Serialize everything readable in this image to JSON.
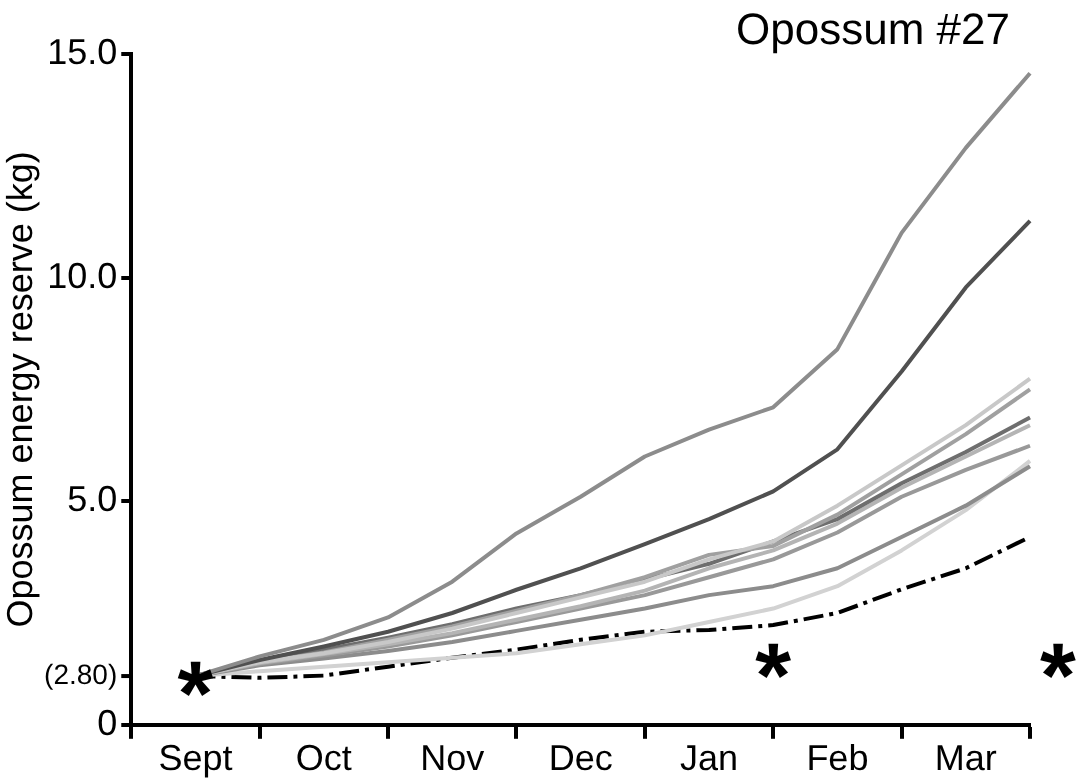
{
  "chart_data": {
    "type": "line",
    "ylabel": "Opossum energy reserve (kg)",
    "title": "Opossum #27",
    "categories": [
      null,
      "Sept",
      null,
      "Oct",
      null,
      "Nov",
      null,
      "Dec",
      null,
      "Jan",
      null,
      "Feb",
      null,
      "Mar",
      null
    ],
    "ylim": [
      0,
      15
    ],
    "yticks": [
      0,
      {
        "value": 5,
        "label": "5.0"
      },
      {
        "value": 10,
        "label": "10.0"
      },
      {
        "value": 15,
        "label": "15.0"
      }
    ],
    "grid": false,
    "legend": false,
    "marker": "none",
    "line_style": "solid",
    "series": [
      {
        "color": "#8c8c8c",
        "values": [
          null,
          1.09,
          1.53,
          1.9,
          2.4,
          3.2,
          4.28,
          5.1,
          6.0,
          6.6,
          7.1,
          8.4,
          11.0,
          12.9,
          14.57
        ]
      },
      {
        "color": "#505050",
        "values": [
          null,
          1.09,
          1.45,
          1.75,
          2.08,
          2.5,
          3.02,
          3.5,
          4.04,
          4.6,
          5.22,
          6.16,
          7.9,
          9.78,
          11.27
        ]
      },
      {
        "color": "#c8c8c8",
        "values": [
          null,
          1.09,
          1.4,
          1.6,
          1.85,
          2.15,
          2.5,
          2.85,
          3.2,
          3.7,
          4.1,
          4.9,
          5.8,
          6.7,
          7.74
        ]
      },
      {
        "color": "#a0a0a0",
        "values": [
          null,
          1.09,
          1.4,
          1.62,
          1.9,
          2.2,
          2.55,
          2.9,
          3.3,
          3.8,
          4.0,
          4.7,
          5.6,
          6.5,
          7.5
        ]
      },
      {
        "color": "#6e6e6e",
        "values": [
          null,
          1.09,
          1.42,
          1.68,
          1.95,
          2.25,
          2.6,
          2.9,
          3.25,
          3.6,
          4.1,
          4.6,
          5.4,
          6.1,
          6.87
        ]
      },
      {
        "color": "#b4b4b4",
        "values": [
          null,
          1.09,
          1.38,
          1.58,
          1.8,
          2.05,
          2.35,
          2.65,
          3.0,
          3.5,
          3.9,
          4.5,
          5.3,
          6.0,
          6.7
        ]
      },
      {
        "color": "#999999",
        "values": [
          null,
          1.09,
          1.36,
          1.55,
          1.75,
          2.0,
          2.3,
          2.6,
          2.9,
          3.3,
          3.7,
          4.3,
          5.1,
          5.7,
          6.24
        ]
      },
      {
        "color": "#8c8c8c",
        "values": [
          null,
          1.09,
          1.33,
          1.48,
          1.65,
          1.85,
          2.1,
          2.35,
          2.6,
          2.9,
          3.1,
          3.5,
          4.2,
          4.9,
          5.78
        ]
      },
      {
        "color": "#d2d2d2",
        "values": [
          null,
          1.09,
          1.2,
          1.3,
          1.4,
          1.5,
          1.6,
          1.8,
          2.0,
          2.3,
          2.6,
          3.1,
          3.9,
          4.8,
          5.9
        ]
      },
      {
        "color": "#000000",
        "line_style": "dashed",
        "values": [
          null,
          1.09,
          1.05,
          1.1,
          1.3,
          1.5,
          1.68,
          1.9,
          2.08,
          2.12,
          2.23,
          2.5,
          3.03,
          3.5,
          4.2
        ]
      }
    ],
    "annotations": [
      "(2.80)",
      "*",
      "*",
      "*"
    ]
  }
}
